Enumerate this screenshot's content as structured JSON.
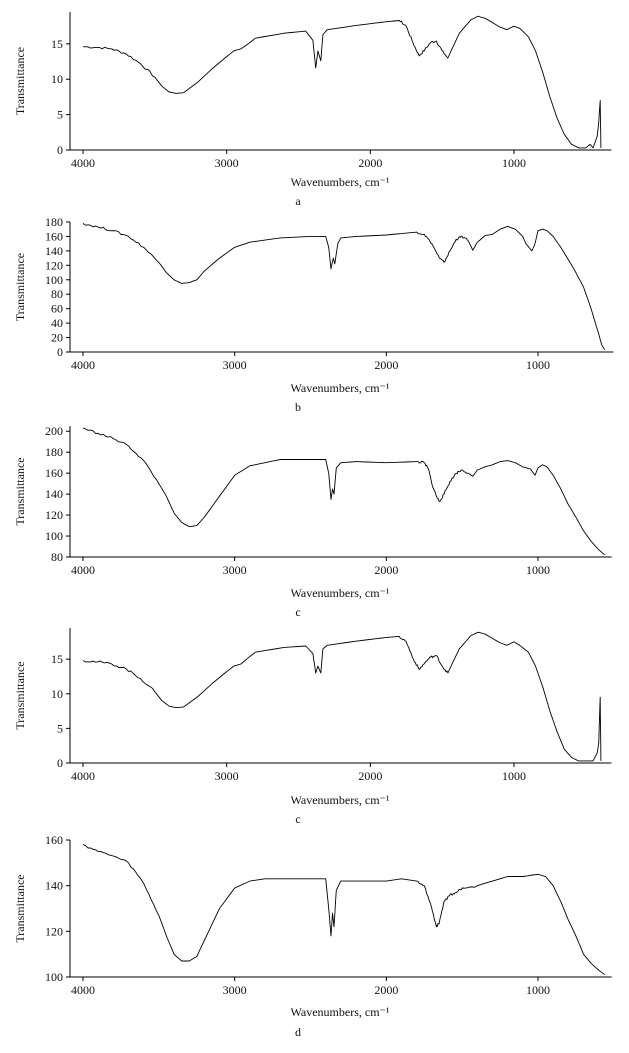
{
  "figure": {
    "background": "#ffffff",
    "line_color": "#000000"
  },
  "chart_data": [
    {
      "type": "line",
      "caption": "a",
      "xlabel": "Wavenumbers, cm⁻¹",
      "ylabel": "Transmittance",
      "xlim": [
        4100,
        350
      ],
      "ylim": [
        0,
        19.5
      ],
      "x_ticks": [
        4000,
        3000,
        2000,
        1000
      ],
      "y_ticks": [
        0,
        5,
        10,
        15
      ],
      "grid": false,
      "points": [
        [
          4000,
          14.6
        ],
        [
          3900,
          14.5
        ],
        [
          3800,
          14.3
        ],
        [
          3700,
          13.6
        ],
        [
          3600,
          12.2
        ],
        [
          3500,
          10.3
        ],
        [
          3450,
          9.0
        ],
        [
          3400,
          8.2
        ],
        [
          3350,
          8.0
        ],
        [
          3300,
          8.1
        ],
        [
          3200,
          9.6
        ],
        [
          3100,
          11.5
        ],
        [
          3000,
          13.2
        ],
        [
          2950,
          14.0
        ],
        [
          2900,
          14.3
        ],
        [
          2850,
          15.0
        ],
        [
          2800,
          15.8
        ],
        [
          2600,
          16.5
        ],
        [
          2450,
          16.8
        ],
        [
          2400,
          15.5
        ],
        [
          2380,
          11.6
        ],
        [
          2365,
          14.0
        ],
        [
          2345,
          12.6
        ],
        [
          2330,
          16.3
        ],
        [
          2300,
          17.0
        ],
        [
          2100,
          17.6
        ],
        [
          1900,
          18.1
        ],
        [
          1800,
          18.3
        ],
        [
          1750,
          17.5
        ],
        [
          1700,
          15.0
        ],
        [
          1660,
          13.3
        ],
        [
          1620,
          14.2
        ],
        [
          1580,
          15.2
        ],
        [
          1540,
          15.4
        ],
        [
          1500,
          14.0
        ],
        [
          1460,
          13.0
        ],
        [
          1420,
          14.8
        ],
        [
          1380,
          16.5
        ],
        [
          1300,
          18.4
        ],
        [
          1250,
          18.9
        ],
        [
          1200,
          18.6
        ],
        [
          1100,
          17.4
        ],
        [
          1050,
          17.0
        ],
        [
          1000,
          17.5
        ],
        [
          960,
          17.2
        ],
        [
          900,
          16.0
        ],
        [
          850,
          14.0
        ],
        [
          800,
          11.0
        ],
        [
          750,
          7.5
        ],
        [
          700,
          4.5
        ],
        [
          650,
          2.2
        ],
        [
          600,
          0.8
        ],
        [
          550,
          0.3
        ],
        [
          500,
          0.3
        ],
        [
          470,
          0.8
        ],
        [
          450,
          0.3
        ],
        [
          420,
          2.0
        ],
        [
          410,
          4.0
        ],
        [
          400,
          7.0
        ],
        [
          395,
          0.3
        ]
      ]
    },
    {
      "type": "line",
      "caption": "b",
      "xlabel": "Wavenumbers, cm⁻¹",
      "ylabel": "Transmittance",
      "xlim": [
        4100,
        530
      ],
      "ylim": [
        0,
        180
      ],
      "x_ticks": [
        4000,
        3000,
        2000,
        1000
      ],
      "y_ticks": [
        0,
        20,
        40,
        60,
        80,
        100,
        120,
        140,
        160,
        180
      ],
      "grid": false,
      "points": [
        [
          4000,
          178
        ],
        [
          3900,
          173
        ],
        [
          3800,
          168
        ],
        [
          3700,
          160
        ],
        [
          3600,
          145
        ],
        [
          3500,
          124
        ],
        [
          3450,
          110
        ],
        [
          3400,
          100
        ],
        [
          3350,
          95
        ],
        [
          3300,
          96
        ],
        [
          3250,
          100
        ],
        [
          3200,
          112
        ],
        [
          3100,
          130
        ],
        [
          3000,
          145
        ],
        [
          2900,
          152
        ],
        [
          2700,
          158
        ],
        [
          2500,
          160
        ],
        [
          2400,
          160
        ],
        [
          2380,
          145
        ],
        [
          2365,
          115
        ],
        [
          2350,
          130
        ],
        [
          2340,
          122
        ],
        [
          2320,
          150
        ],
        [
          2300,
          158
        ],
        [
          2200,
          160
        ],
        [
          2000,
          162
        ],
        [
          1900,
          164
        ],
        [
          1850,
          165
        ],
        [
          1800,
          166
        ],
        [
          1750,
          163
        ],
        [
          1700,
          150
        ],
        [
          1650,
          130
        ],
        [
          1620,
          124
        ],
        [
          1580,
          140
        ],
        [
          1540,
          156
        ],
        [
          1500,
          160
        ],
        [
          1460,
          154
        ],
        [
          1430,
          141
        ],
        [
          1400,
          152
        ],
        [
          1350,
          161
        ],
        [
          1300,
          163
        ],
        [
          1250,
          170
        ],
        [
          1200,
          174
        ],
        [
          1150,
          170
        ],
        [
          1100,
          160
        ],
        [
          1080,
          150
        ],
        [
          1060,
          145
        ],
        [
          1040,
          140
        ],
        [
          1020,
          150
        ],
        [
          1000,
          168
        ],
        [
          970,
          170
        ],
        [
          940,
          168
        ],
        [
          900,
          160
        ],
        [
          850,
          145
        ],
        [
          800,
          128
        ],
        [
          750,
          110
        ],
        [
          700,
          90
        ],
        [
          650,
          60
        ],
        [
          600,
          25
        ],
        [
          580,
          10
        ],
        [
          560,
          3
        ]
      ]
    },
    {
      "type": "line",
      "caption": "c",
      "xlabel": "Wavenumbers, cm⁻¹",
      "ylabel": "Transmittance",
      "xlim": [
        4100,
        540
      ],
      "ylim": [
        80,
        205
      ],
      "x_ticks": [
        4000,
        3000,
        2000,
        1000
      ],
      "y_ticks": [
        80,
        100,
        120,
        140,
        160,
        180,
        200
      ],
      "grid": false,
      "points": [
        [
          4000,
          203
        ],
        [
          3900,
          198
        ],
        [
          3800,
          193
        ],
        [
          3700,
          186
        ],
        [
          3600,
          172
        ],
        [
          3500,
          150
        ],
        [
          3450,
          138
        ],
        [
          3400,
          122
        ],
        [
          3350,
          113
        ],
        [
          3300,
          109
        ],
        [
          3250,
          110
        ],
        [
          3200,
          118
        ],
        [
          3100,
          138
        ],
        [
          3000,
          158
        ],
        [
          2900,
          167
        ],
        [
          2800,
          170
        ],
        [
          2700,
          173
        ],
        [
          2500,
          173
        ],
        [
          2400,
          173
        ],
        [
          2380,
          160
        ],
        [
          2365,
          135
        ],
        [
          2355,
          145
        ],
        [
          2345,
          140
        ],
        [
          2330,
          165
        ],
        [
          2300,
          170
        ],
        [
          2200,
          171
        ],
        [
          2000,
          170
        ],
        [
          1800,
          171
        ],
        [
          1750,
          170
        ],
        [
          1720,
          163
        ],
        [
          1700,
          150
        ],
        [
          1670,
          138
        ],
        [
          1650,
          133
        ],
        [
          1620,
          140
        ],
        [
          1580,
          152
        ],
        [
          1540,
          160
        ],
        [
          1500,
          163
        ],
        [
          1460,
          160
        ],
        [
          1430,
          157
        ],
        [
          1400,
          163
        ],
        [
          1350,
          166
        ],
        [
          1300,
          168
        ],
        [
          1250,
          171
        ],
        [
          1200,
          172
        ],
        [
          1150,
          170
        ],
        [
          1100,
          166
        ],
        [
          1050,
          164
        ],
        [
          1020,
          158
        ],
        [
          1000,
          165
        ],
        [
          970,
          168
        ],
        [
          940,
          166
        ],
        [
          900,
          158
        ],
        [
          850,
          145
        ],
        [
          800,
          130
        ],
        [
          750,
          118
        ],
        [
          700,
          105
        ],
        [
          650,
          95
        ],
        [
          600,
          87
        ],
        [
          560,
          82
        ]
      ]
    },
    {
      "type": "line",
      "caption": "c",
      "xlabel": "Wavenumbers, cm⁻¹",
      "ylabel": "Transmittance",
      "xlim": [
        4100,
        350
      ],
      "ylim": [
        0,
        19.5
      ],
      "x_ticks": [
        4000,
        3000,
        2000,
        1000
      ],
      "y_ticks": [
        0,
        5,
        10,
        15
      ],
      "grid": false,
      "points": [
        [
          4000,
          14.8
        ],
        [
          3900,
          14.6
        ],
        [
          3800,
          14.3
        ],
        [
          3700,
          13.6
        ],
        [
          3600,
          12.2
        ],
        [
          3500,
          10.3
        ],
        [
          3450,
          9.0
        ],
        [
          3400,
          8.2
        ],
        [
          3350,
          8.0
        ],
        [
          3300,
          8.1
        ],
        [
          3200,
          9.6
        ],
        [
          3100,
          11.5
        ],
        [
          3000,
          13.2
        ],
        [
          2950,
          14.0
        ],
        [
          2900,
          14.3
        ],
        [
          2850,
          15.2
        ],
        [
          2800,
          16.0
        ],
        [
          2600,
          16.7
        ],
        [
          2450,
          16.9
        ],
        [
          2400,
          15.8
        ],
        [
          2380,
          13.0
        ],
        [
          2365,
          14.0
        ],
        [
          2345,
          13.0
        ],
        [
          2330,
          16.5
        ],
        [
          2300,
          17.0
        ],
        [
          2100,
          17.6
        ],
        [
          1900,
          18.1
        ],
        [
          1800,
          18.3
        ],
        [
          1750,
          17.5
        ],
        [
          1700,
          15.0
        ],
        [
          1660,
          13.5
        ],
        [
          1620,
          14.5
        ],
        [
          1580,
          15.3
        ],
        [
          1540,
          15.5
        ],
        [
          1500,
          14.0
        ],
        [
          1460,
          13.0
        ],
        [
          1420,
          14.8
        ],
        [
          1380,
          16.5
        ],
        [
          1300,
          18.4
        ],
        [
          1250,
          18.9
        ],
        [
          1200,
          18.6
        ],
        [
          1100,
          17.4
        ],
        [
          1050,
          17.0
        ],
        [
          1000,
          17.5
        ],
        [
          960,
          17.0
        ],
        [
          900,
          16.0
        ],
        [
          850,
          14.0
        ],
        [
          800,
          11.0
        ],
        [
          750,
          7.5
        ],
        [
          700,
          4.5
        ],
        [
          650,
          2.0
        ],
        [
          600,
          0.8
        ],
        [
          550,
          0.3
        ],
        [
          500,
          0.3
        ],
        [
          450,
          0.3
        ],
        [
          420,
          1.5
        ],
        [
          410,
          3.0
        ],
        [
          400,
          9.5
        ],
        [
          395,
          0.3
        ]
      ]
    },
    {
      "type": "line",
      "caption": "d",
      "xlabel": "Wavenumbers, cm⁻¹",
      "ylabel": "Transmittance",
      "xlim": [
        4100,
        540
      ],
      "ylim": [
        100,
        160
      ],
      "x_ticks": [
        4000,
        3000,
        2000,
        1000
      ],
      "y_ticks": [
        100,
        120,
        140,
        160
      ],
      "grid": false,
      "points": [
        [
          4000,
          158
        ],
        [
          3900,
          155
        ],
        [
          3800,
          153
        ],
        [
          3700,
          150
        ],
        [
          3600,
          141
        ],
        [
          3500,
          127
        ],
        [
          3450,
          118
        ],
        [
          3400,
          110
        ],
        [
          3350,
          107
        ],
        [
          3300,
          107
        ],
        [
          3250,
          109
        ],
        [
          3200,
          116
        ],
        [
          3100,
          130
        ],
        [
          3000,
          139
        ],
        [
          2900,
          142
        ],
        [
          2800,
          143
        ],
        [
          2700,
          143
        ],
        [
          2500,
          143
        ],
        [
          2400,
          143
        ],
        [
          2380,
          130
        ],
        [
          2365,
          118
        ],
        [
          2355,
          128
        ],
        [
          2345,
          122
        ],
        [
          2330,
          138
        ],
        [
          2300,
          142
        ],
        [
          2200,
          142
        ],
        [
          2000,
          142
        ],
        [
          1900,
          143
        ],
        [
          1800,
          142
        ],
        [
          1750,
          140
        ],
        [
          1700,
          130
        ],
        [
          1670,
          122
        ],
        [
          1650,
          124
        ],
        [
          1620,
          133
        ],
        [
          1580,
          136
        ],
        [
          1540,
          137
        ],
        [
          1500,
          139
        ],
        [
          1400,
          140
        ],
        [
          1300,
          142
        ],
        [
          1200,
          144
        ],
        [
          1100,
          144
        ],
        [
          1000,
          145
        ],
        [
          950,
          144
        ],
        [
          900,
          140
        ],
        [
          850,
          133
        ],
        [
          800,
          125
        ],
        [
          750,
          118
        ],
        [
          700,
          110
        ],
        [
          650,
          106
        ],
        [
          600,
          103
        ],
        [
          560,
          101
        ]
      ]
    }
  ]
}
